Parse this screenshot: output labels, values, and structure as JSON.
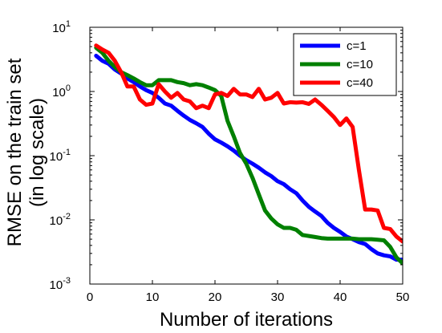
{
  "chart_data": {
    "type": "line",
    "title": "",
    "xlabel": "Number of iterations",
    "ylabel_lines": [
      "RMSE on the train set",
      "(in log scale)"
    ],
    "xlim": [
      0,
      50
    ],
    "ylim": [
      0.001,
      10
    ],
    "yscale": "log",
    "grid": false,
    "legend_position": "top-right",
    "x_ticks": [
      0,
      10,
      20,
      30,
      40,
      50
    ],
    "y_ticks": [
      {
        "value": 10,
        "base": "10",
        "exp": "1"
      },
      {
        "value": 1,
        "base": "10",
        "exp": "0"
      },
      {
        "value": 0.1,
        "base": "10",
        "exp": "-1"
      },
      {
        "value": 0.01,
        "base": "10",
        "exp": "-2"
      },
      {
        "value": 0.001,
        "base": "10",
        "exp": "-3"
      }
    ],
    "series": [
      {
        "name": "c=1",
        "color": "#0000ff",
        "x": [
          1,
          2,
          3,
          4,
          5,
          6,
          7,
          8,
          9,
          10,
          11,
          12,
          13,
          14,
          15,
          16,
          17,
          18,
          19,
          20,
          21,
          22,
          23,
          24,
          25,
          26,
          27,
          28,
          29,
          30,
          31,
          32,
          33,
          34,
          35,
          36,
          37,
          38,
          39,
          40,
          41,
          42,
          43,
          44,
          45,
          46,
          47,
          48,
          49,
          50
        ],
        "y": [
          3.6,
          3.0,
          2.7,
          2.2,
          1.9,
          1.6,
          1.4,
          1.2,
          1.05,
          0.95,
          0.8,
          0.65,
          0.6,
          0.5,
          0.42,
          0.36,
          0.32,
          0.28,
          0.22,
          0.18,
          0.16,
          0.14,
          0.12,
          0.1,
          0.085,
          0.075,
          0.065,
          0.055,
          0.048,
          0.04,
          0.036,
          0.03,
          0.026,
          0.02,
          0.016,
          0.0135,
          0.0115,
          0.009,
          0.0075,
          0.0065,
          0.0055,
          0.005,
          0.0045,
          0.0042,
          0.0035,
          0.003,
          0.0028,
          0.0027,
          0.0024,
          0.0024
        ]
      },
      {
        "name": "c=10",
        "color": "#008000",
        "x": [
          1,
          2,
          3,
          4,
          5,
          6,
          7,
          8,
          9,
          10,
          11,
          12,
          13,
          14,
          15,
          16,
          17,
          18,
          19,
          20,
          21,
          22,
          23,
          24,
          25,
          26,
          27,
          28,
          29,
          30,
          31,
          32,
          33,
          34,
          35,
          36,
          37,
          38,
          39,
          40,
          41,
          42,
          43,
          44,
          45,
          46,
          47,
          48,
          49,
          50
        ],
        "y": [
          4.8,
          4.0,
          3.0,
          2.4,
          2.0,
          1.8,
          1.6,
          1.4,
          1.25,
          1.25,
          1.5,
          1.5,
          1.5,
          1.4,
          1.35,
          1.25,
          1.3,
          1.25,
          1.15,
          1.05,
          0.85,
          0.35,
          0.2,
          0.11,
          0.075,
          0.045,
          0.025,
          0.014,
          0.0105,
          0.0085,
          0.0075,
          0.0075,
          0.007,
          0.0058,
          0.0056,
          0.0054,
          0.0052,
          0.0051,
          0.0051,
          0.0051,
          0.0051,
          0.0051,
          0.005,
          0.005,
          0.005,
          0.0049,
          0.0048,
          0.0038,
          0.0026,
          0.0021
        ]
      },
      {
        "name": "c=40",
        "color": "#ff0000",
        "x": [
          1,
          2,
          3,
          4,
          5,
          6,
          7,
          8,
          9,
          10,
          11,
          12,
          13,
          14,
          15,
          16,
          17,
          18,
          19,
          20,
          21,
          22,
          23,
          24,
          25,
          26,
          27,
          28,
          29,
          30,
          31,
          32,
          33,
          34,
          35,
          36,
          37,
          38,
          39,
          40,
          41,
          42,
          43,
          44,
          45,
          46,
          47,
          48,
          49,
          50
        ],
        "y": [
          5.2,
          4.5,
          4.0,
          3.0,
          2.0,
          1.2,
          1.2,
          0.75,
          0.62,
          0.65,
          1.3,
          1.0,
          0.8,
          0.95,
          0.75,
          0.7,
          0.55,
          0.6,
          0.55,
          0.9,
          0.95,
          0.85,
          1.1,
          0.9,
          0.9,
          0.82,
          1.1,
          0.75,
          0.8,
          0.95,
          0.65,
          0.68,
          0.67,
          0.68,
          0.64,
          0.75,
          0.62,
          0.5,
          0.4,
          0.3,
          0.38,
          0.28,
          0.06,
          0.0145,
          0.0145,
          0.014,
          0.0075,
          0.0072,
          0.0055,
          0.0046
        ]
      }
    ]
  }
}
